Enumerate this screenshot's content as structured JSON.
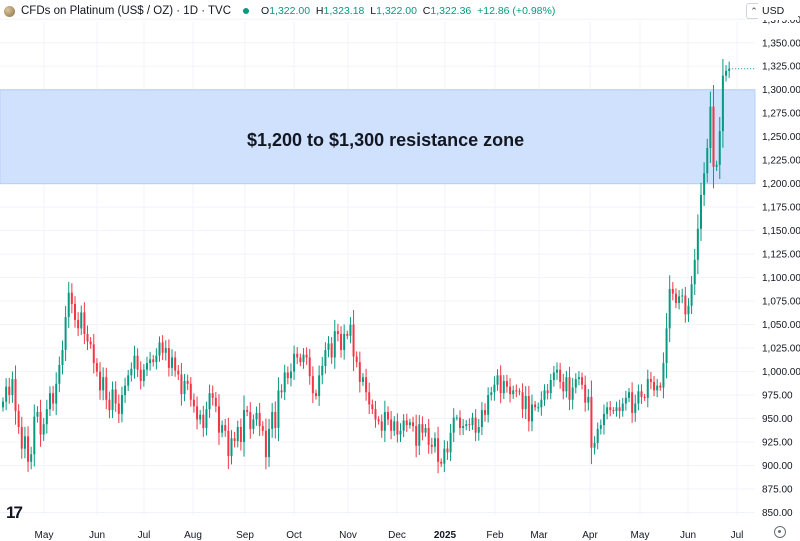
{
  "header": {
    "title": "CFDs on Platinum (US$ / OZ) · 1D · TVC",
    "open_label": "O",
    "open": "1,322.00",
    "high_label": "H",
    "high": "1,323.18",
    "low_label": "L",
    "low": "1,322.00",
    "close_label": "C",
    "close": "1,322.36",
    "change": "+12.86 (+0.98%)"
  },
  "currency": "USD",
  "colors": {
    "up": "#089981",
    "down": "#f23645",
    "zone_fill": "#cfe1fd",
    "zone_border": "#b7cff8",
    "grid": "#f0f3fa",
    "axis_text": "#131722",
    "status_dot": "#089981"
  },
  "zone_label": "$1,200 to $1,300 resistance zone",
  "tv_logo": "17",
  "chart_data": {
    "type": "candlestick",
    "title": "CFDs on Platinum (US$ / OZ) · 1D · TVC",
    "ylim": [
      845,
      1385
    ],
    "y_ticks": [
      850,
      875,
      900,
      925,
      950,
      975,
      1000,
      1025,
      1050,
      1075,
      1100,
      1125,
      1150,
      1175,
      1200,
      1225,
      1250,
      1275,
      1300,
      1325,
      1350,
      1375
    ],
    "y_tick_labels": [
      "850.00",
      "875.00",
      "900.00",
      "925.00",
      "950.00",
      "975.00",
      "1,000.00",
      "1,025.00",
      "1,050.00",
      "1,075.00",
      "1,100.00",
      "1,125.00",
      "1,150.00",
      "1,175.00",
      "1,200.00",
      "1,225.00",
      "1,250.00",
      "1,275.00",
      "1,300.00",
      "1,325.00",
      "1,350.00",
      "1,375.00"
    ],
    "x_tick_labels": [
      "May",
      "Jun",
      "Jul",
      "Aug",
      "Sep",
      "Oct",
      "Nov",
      "Dec",
      "2025",
      "Feb",
      "Mar",
      "Apr",
      "May",
      "Jun",
      "Jul"
    ],
    "x_tick_bold": [
      false,
      false,
      false,
      false,
      false,
      false,
      false,
      false,
      true,
      false,
      false,
      false,
      false,
      false,
      false
    ],
    "resistance_zone": {
      "low": 1200,
      "high": 1300
    },
    "last_price": 1322.36,
    "closes": [
      968,
      984,
      975,
      992,
      958,
      941,
      918,
      931,
      904,
      912,
      952,
      957,
      933,
      944,
      960,
      977,
      966,
      987,
      1007,
      1023,
      1058,
      1084,
      1072,
      1055,
      1046,
      1063,
      1040,
      1032,
      1029,
      1009,
      1000,
      980,
      994,
      970,
      959,
      981,
      966,
      955,
      975,
      985,
      996,
      1003,
      1017,
      1002,
      990,
      1002,
      1009,
      1013,
      1010,
      1017,
      1031,
      1020,
      1025,
      1004,
      1015,
      1001,
      997,
      976,
      990,
      987,
      970,
      963,
      949,
      954,
      940,
      960,
      977,
      972,
      963,
      935,
      943,
      937,
      910,
      929,
      926,
      941,
      925,
      959,
      957,
      939,
      949,
      956,
      942,
      937,
      909,
      939,
      957,
      940,
      980,
      978,
      999,
      993,
      1000,
      1019,
      1015,
      1010,
      1018,
      1015,
      995,
      977,
      974,
      996,
      1006,
      1023,
      1030,
      1015,
      1043,
      1040,
      1023,
      1040,
      1038,
      1050,
      1016,
      1010,
      989,
      994,
      978,
      965,
      960,
      949,
      947,
      937,
      957,
      949,
      937,
      947,
      933,
      937,
      948,
      943,
      946,
      942,
      921,
      944,
      935,
      940,
      922,
      920,
      929,
      904,
      902,
      918,
      914,
      935,
      951,
      951,
      940,
      942,
      944,
      943,
      951,
      935,
      941,
      959,
      954,
      975,
      978,
      986,
      996,
      977,
      990,
      984,
      976,
      980,
      979,
      978,
      960,
      974,
      947,
      965,
      962,
      962,
      970,
      980,
      977,
      991,
      999,
      1002,
      989,
      979,
      994,
      970,
      983,
      992,
      994,
      986,
      967,
      973,
      919,
      924,
      939,
      943,
      955,
      962,
      959,
      958,
      962,
      958,
      966,
      972,
      978,
      956,
      966,
      979,
      973,
      972,
      992,
      989,
      980,
      985,
      983,
      1009,
      1046,
      1088,
      1083,
      1073,
      1080,
      1081,
      1061,
      1070,
      1093,
      1119,
      1152,
      1188,
      1211,
      1238,
      1282,
      1218,
      1220,
      1256,
      1315,
      1320,
      1322.36
    ]
  }
}
